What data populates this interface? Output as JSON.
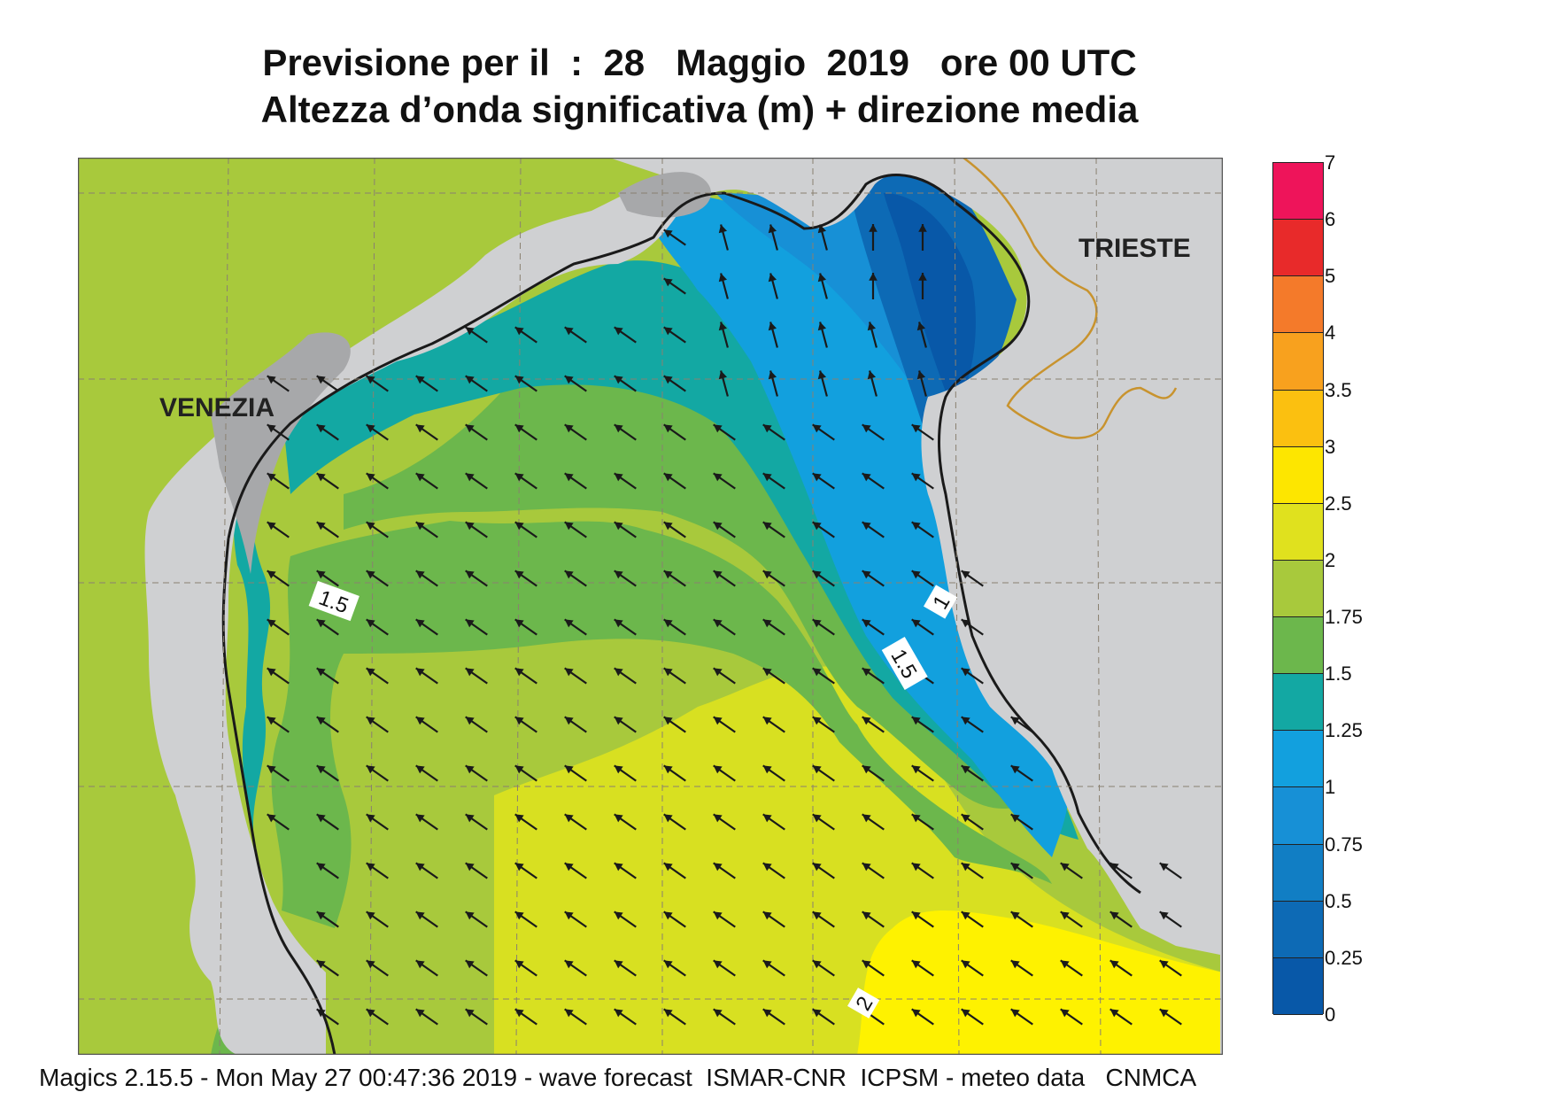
{
  "title": {
    "line1": "Previsione per il  :  28   Maggio  2019   ore 00 UTC",
    "line2": "Altezza d’onda significativa (m) + direzione media"
  },
  "map": {
    "cities": [
      {
        "name": "VENEZIA"
      },
      {
        "name": "TRIESTE"
      }
    ],
    "contour_labels": [
      "1.5",
      "1",
      "1.5",
      "2"
    ],
    "colors": {
      "land": "#cfd0d2",
      "coast": "#1a1a1a",
      "border": "#c8932e",
      "grid": "#8a8070"
    }
  },
  "legend": {
    "levels": [
      "7",
      "6",
      "5",
      "4",
      "3.5",
      "3",
      "2.5",
      "2",
      "1.75",
      "1.5",
      "1.25",
      "1",
      "0.75",
      "0.5",
      "0.25",
      "0"
    ],
    "colors_top_to_bottom": [
      "#ee145a",
      "#e82a2a",
      "#f47a2a",
      "#f8a11e",
      "#fbc010",
      "#fde600",
      "#e0e11e",
      "#a8c93c",
      "#6cb74c",
      "#13a8a3",
      "#12a0de",
      "#1790d6",
      "#117ec4",
      "#0d6ab5",
      "#0858a8"
    ]
  },
  "footer": "Magics 2.15.5 - Mon May 27 00:47:36 2019 - wave forecast  ISMAR-CNR  ICPSM - meteo data   CNMCA"
}
